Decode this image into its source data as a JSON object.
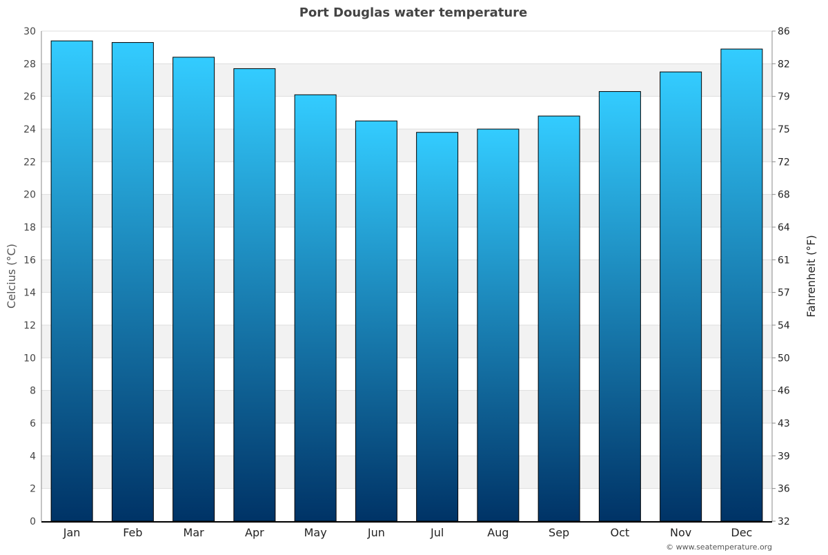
{
  "chart_data": {
    "type": "bar",
    "title": "Port Douglas water temperature",
    "categories": [
      "Jan",
      "Feb",
      "Mar",
      "Apr",
      "May",
      "Jun",
      "Jul",
      "Aug",
      "Sep",
      "Oct",
      "Nov",
      "Dec"
    ],
    "values": [
      29.4,
      29.3,
      28.4,
      27.7,
      26.1,
      24.5,
      23.8,
      24.0,
      24.8,
      26.3,
      27.5,
      28.9
    ],
    "ylabel": "Celcius (°C)",
    "ylabel_right": "Fahrenheit (°F)",
    "ylim": [
      0,
      30
    ],
    "yticks": [
      0,
      2,
      4,
      6,
      8,
      10,
      12,
      14,
      16,
      18,
      20,
      22,
      24,
      26,
      28,
      30
    ],
    "yticks_right": [
      32,
      36,
      39,
      43,
      46,
      50,
      54,
      57,
      61,
      64,
      68,
      72,
      75,
      79,
      82,
      86
    ],
    "grid": true,
    "legend": "none",
    "colors": {
      "bar_top": "#33ccff",
      "bar_bottom": "#003366",
      "band": "#f2f2f2"
    }
  },
  "credit": "© www.seatemperature.org"
}
